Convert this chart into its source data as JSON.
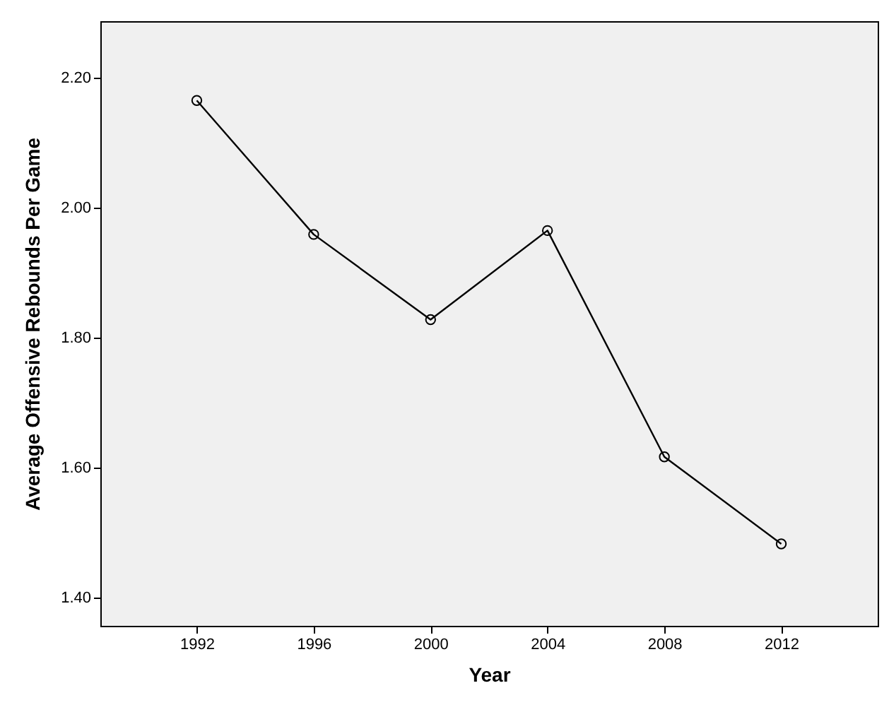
{
  "chart_data": {
    "type": "line",
    "xlabel": "Year",
    "ylabel": "Average Offensive Rebounds Per Game",
    "x": [
      1992,
      1996,
      2000,
      2004,
      2008,
      2012
    ],
    "series": [
      {
        "color": "#000000",
        "values": [
          2.165,
          1.959,
          1.828,
          1.965,
          1.617,
          1.483
        ]
      }
    ],
    "xlim": [
      1988.7,
      2015.3
    ],
    "xticks": [
      1992,
      1996,
      2000,
      2004,
      2008,
      2012
    ],
    "ylim": [
      1.357,
      2.287
    ],
    "yticks": [
      {
        "value": 1.4,
        "label": "1.40"
      },
      {
        "value": 1.6,
        "label": "1.60"
      },
      {
        "value": 1.8,
        "label": "1.80"
      },
      {
        "value": 2.0,
        "label": "2.00"
      },
      {
        "value": 2.2,
        "label": "2.20"
      }
    ],
    "grid": false,
    "marker": "circle",
    "line_style": "solid"
  }
}
